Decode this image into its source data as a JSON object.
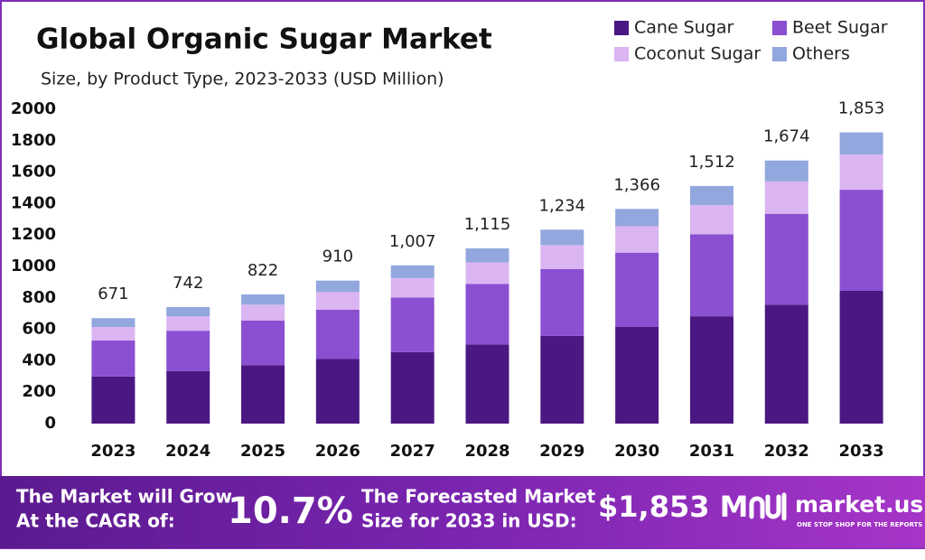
{
  "chart_data": {
    "type": "stacked_bar",
    "title": "Global Organic Sugar Market",
    "subtitle": "Size, by Product Type, 2023-2033 (USD Million)",
    "categories": [
      "2023",
      "2024",
      "2025",
      "2026",
      "2027",
      "2028",
      "2029",
      "2030",
      "2031",
      "2032",
      "2033"
    ],
    "series": [
      {
        "name": "Cane Sugar",
        "color": "#4b1782",
        "values": [
          300,
          335,
          372,
          411,
          455,
          504,
          558,
          617,
          683,
          757,
          845
        ]
      },
      {
        "name": "Beet Sugar",
        "color": "#8b4fd1",
        "values": [
          229,
          256,
          284,
          314,
          347,
          385,
          426,
          471,
          522,
          578,
          643
        ]
      },
      {
        "name": "Coconut Sugar",
        "color": "#dab5f2",
        "values": [
          86,
          91,
          101,
          112,
          124,
          137,
          152,
          168,
          186,
          206,
          225
        ]
      },
      {
        "name": "Others",
        "color": "#92a7dd",
        "values": [
          56,
          60,
          65,
          73,
          81,
          89,
          98,
          110,
          121,
          133,
          140
        ]
      }
    ],
    "totals": {
      "values": [
        671,
        742,
        822,
        910,
        1007,
        1115,
        1234,
        1366,
        1512,
        1674,
        1853
      ],
      "value_labels": [
        "671",
        "742",
        "822",
        "910",
        "1,007",
        "1,115",
        "1,234",
        "1,366",
        "1,512",
        "1,674",
        "1,853"
      ]
    },
    "ylim": [
      0,
      2000
    ],
    "yticks": [
      0,
      200,
      400,
      600,
      800,
      1000,
      1200,
      1400,
      1600,
      1800,
      2000
    ],
    "grid": false,
    "legend": "top-right"
  },
  "footer": {
    "cagr_text": [
      "The Market will Grow",
      "At the CAGR of:"
    ],
    "cagr_value": "10.7%",
    "forecast_text": [
      "The Forecasted Market",
      "Size for 2033 in USD:"
    ],
    "forecast_value": "$1,853 M",
    "brand": "market.us",
    "tagline": "ONE STOP SHOP FOR THE REPORTS"
  }
}
